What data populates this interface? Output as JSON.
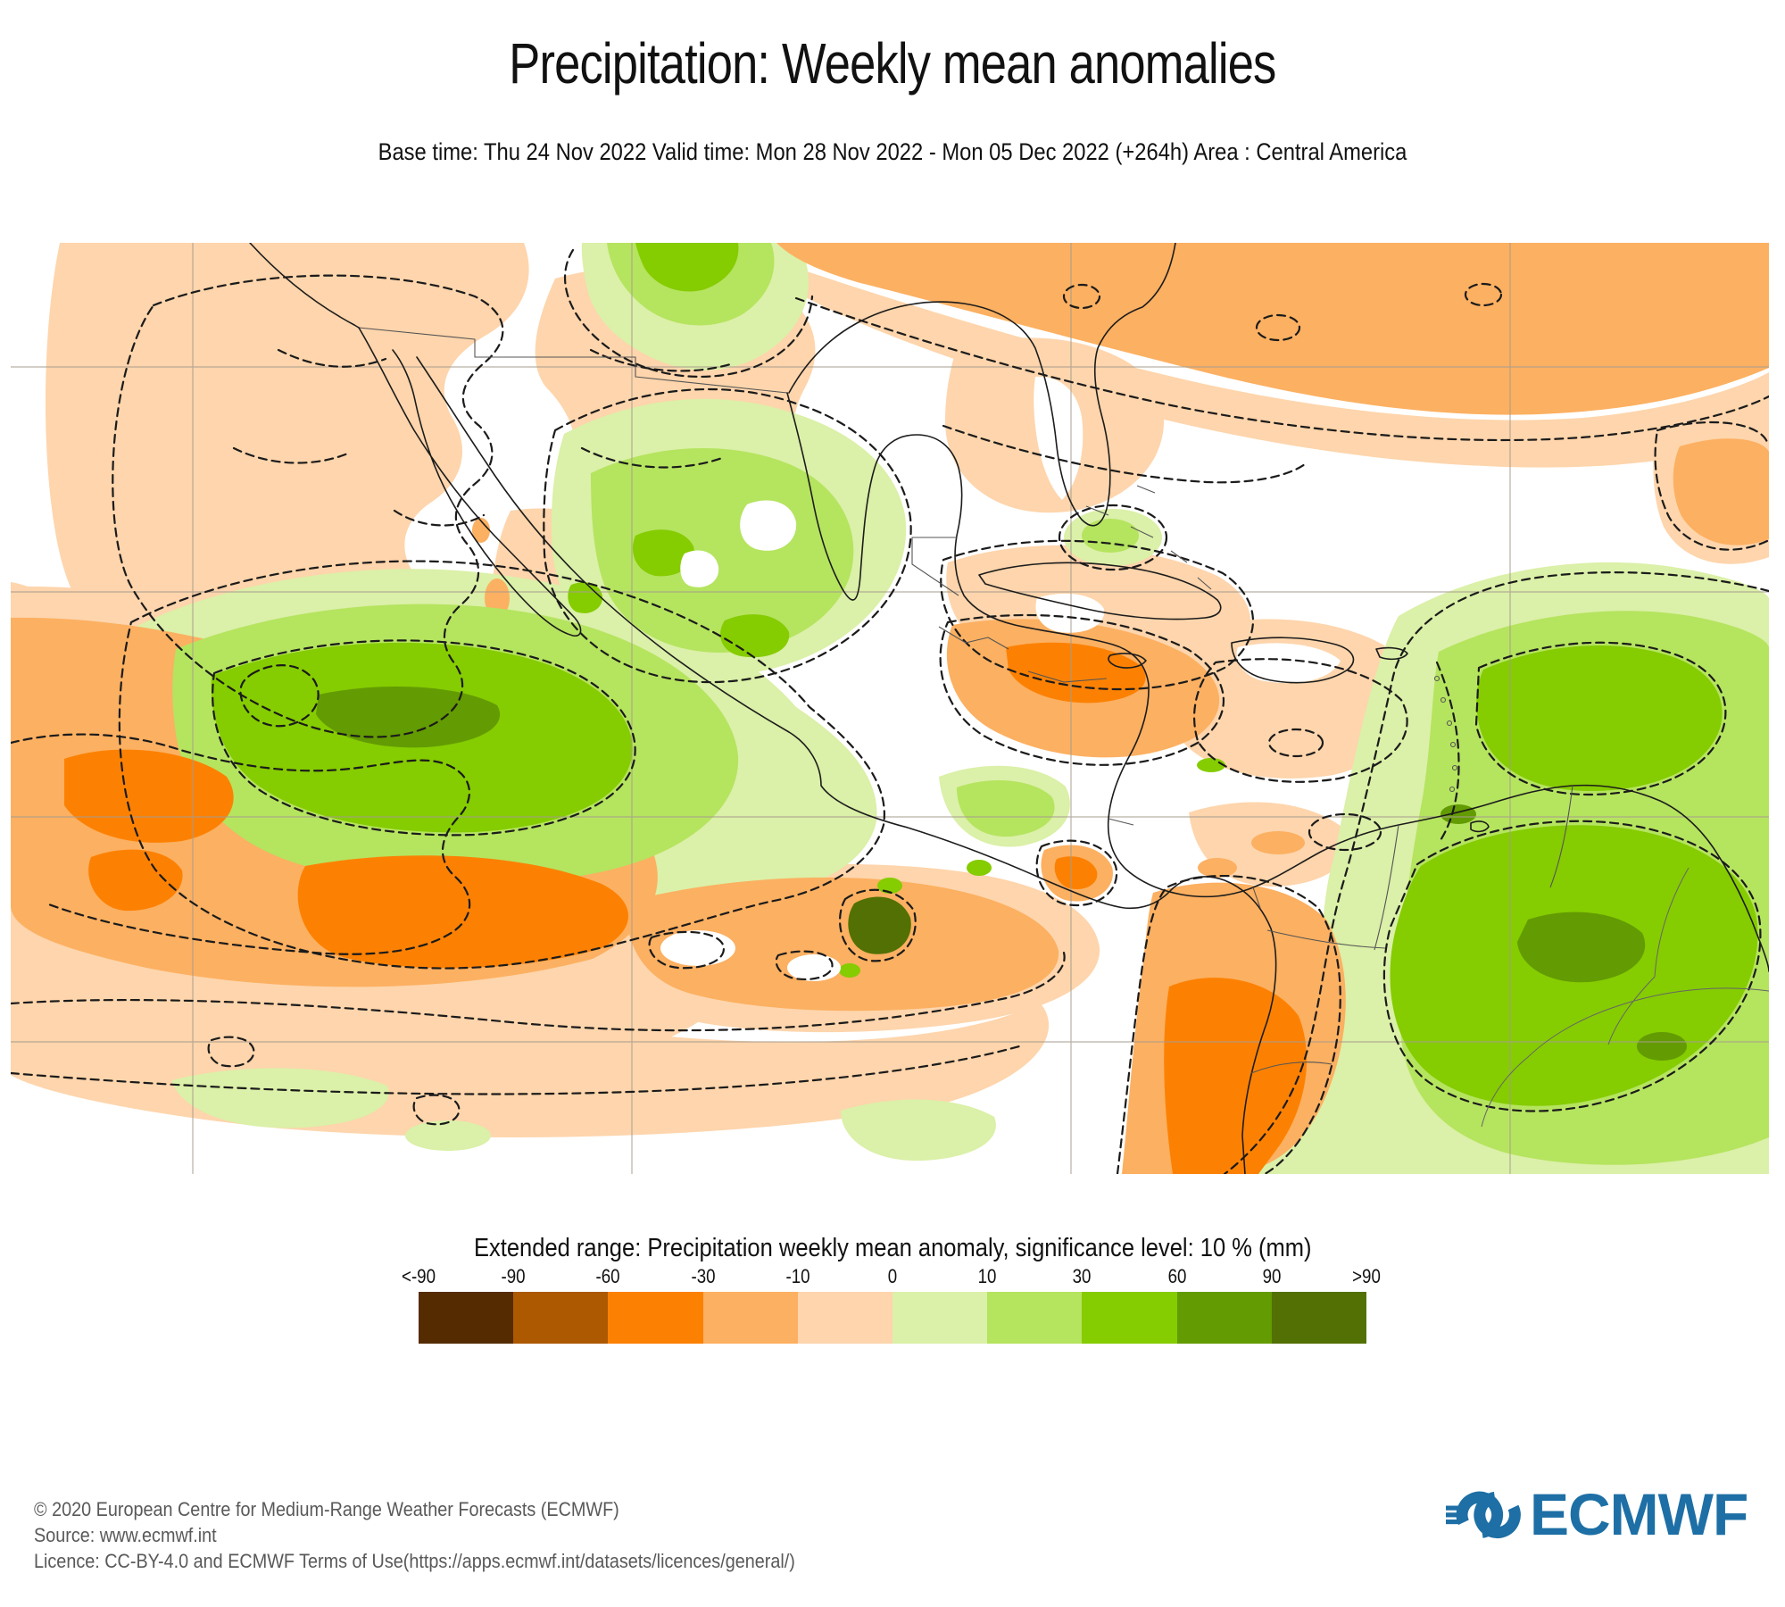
{
  "header": {
    "title": "Precipitation: Weekly mean anomalies",
    "subtitle": "Base time: Thu 24 Nov 2022 Valid time: Mon 28 Nov 2022 - Mon 05 Dec 2022 (+264h) Area : Central America"
  },
  "legend": {
    "title": "Extended range: Precipitation weekly mean anomaly, significance level: 10 % (mm)",
    "tick_labels": [
      "<-90",
      "-90",
      "-60",
      "-30",
      "-10",
      "0",
      "10",
      "30",
      "60",
      "90",
      ">90"
    ],
    "colors": [
      "#552B02",
      "#AC5902",
      "#FC8103",
      "#FCB061",
      "#FED5AC",
      "#DBF0A8",
      "#B5E45F",
      "#85CC01",
      "#639B02",
      "#527003"
    ]
  },
  "map": {
    "grid_color": "#A79D8F",
    "coastline_color": "#1C1C1C",
    "contour_color": "#1B1B1B"
  },
  "footer": {
    "lines": [
      "© 2020 European Centre for Medium-Range Weather Forecasts (ECMWF)",
      "Source: www.ecmwf.int",
      "Licence: CC-BY-4.0 and ECMWF Terms of Use(https://apps.ecmwf.int/datasets/licences/general/)"
    ]
  },
  "logo": {
    "text": "ECMWF",
    "color": "#1D6FA5"
  }
}
